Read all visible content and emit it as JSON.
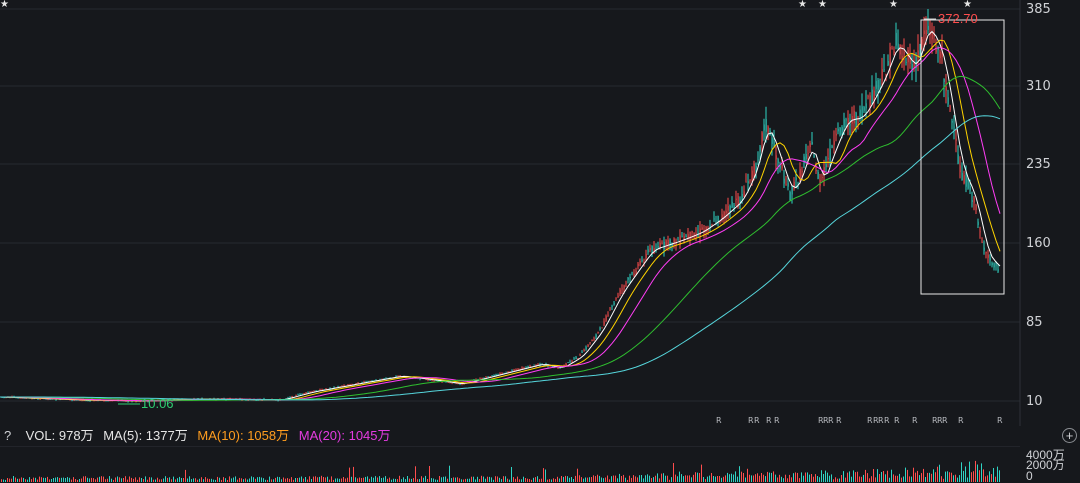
{
  "price_axis": {
    "ticks": [
      "385",
      "310",
      "235",
      "160",
      "85",
      "10"
    ]
  },
  "annotations": {
    "high_label": "372.70",
    "low_label": "10.06"
  },
  "volume_panel": {
    "help": "?",
    "vol": "VOL: 978万",
    "ma5": "MA(5): 1377万",
    "ma10": "MA(10): 1058万",
    "ma20": "MA(20): 1045万",
    "ticks": [
      "4000万",
      "2000万",
      "0"
    ],
    "zoom_icon": "+"
  },
  "event_marks": {
    "star": "★",
    "r": "R"
  },
  "colors": {
    "background": "#16181c",
    "up_candle": "#ff4d4d",
    "down_candle": "#2fd3c4",
    "ma5": "#ffffff",
    "ma10": "#ffd400",
    "ma20": "#ff3df5",
    "ma60": "#2fbf2f",
    "ma120": "#56d6dc"
  }
}
